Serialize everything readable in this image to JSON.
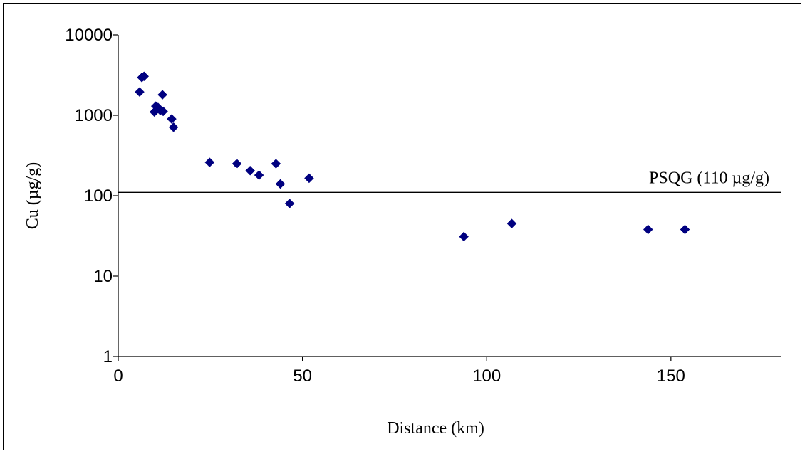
{
  "chart_data": {
    "type": "scatter",
    "xlabel": "Distance (km)",
    "ylabel": "Cu (µg/g)",
    "xlim": [
      0,
      180
    ],
    "ylim": [
      1,
      10000
    ],
    "y_scale": "log",
    "x_ticks": [
      "0",
      "50",
      "100",
      "150"
    ],
    "x_tick_values": [
      0,
      50,
      100,
      150
    ],
    "y_ticks": [
      "1",
      "10",
      "100",
      "1000",
      "10000"
    ],
    "y_tick_values": [
      1,
      10,
      100,
      1000,
      10000
    ],
    "grid": false,
    "marker": "diamond",
    "marker_color": "#000080",
    "points": [
      {
        "x": 5.8,
        "y": 1950
      },
      {
        "x": 6.4,
        "y": 2950
      },
      {
        "x": 7.0,
        "y": 3050
      },
      {
        "x": 9.8,
        "y": 1100
      },
      {
        "x": 10.2,
        "y": 1300
      },
      {
        "x": 10.8,
        "y": 1250
      },
      {
        "x": 11.4,
        "y": 1150
      },
      {
        "x": 12.0,
        "y": 1800
      },
      {
        "x": 12.2,
        "y": 1120
      },
      {
        "x": 14.5,
        "y": 900
      },
      {
        "x": 15.0,
        "y": 710
      },
      {
        "x": 24.8,
        "y": 260
      },
      {
        "x": 32.2,
        "y": 250
      },
      {
        "x": 35.8,
        "y": 205
      },
      {
        "x": 38.2,
        "y": 180
      },
      {
        "x": 42.8,
        "y": 250
      },
      {
        "x": 44.0,
        "y": 140
      },
      {
        "x": 46.5,
        "y": 80
      },
      {
        "x": 51.8,
        "y": 165
      },
      {
        "x": 93.8,
        "y": 31
      },
      {
        "x": 106.8,
        "y": 45
      },
      {
        "x": 143.8,
        "y": 38
      },
      {
        "x": 153.8,
        "y": 38
      }
    ],
    "reference_line": {
      "value": 110,
      "color": "#000000"
    },
    "annotation": "PSQG (110 µg/g)"
  }
}
